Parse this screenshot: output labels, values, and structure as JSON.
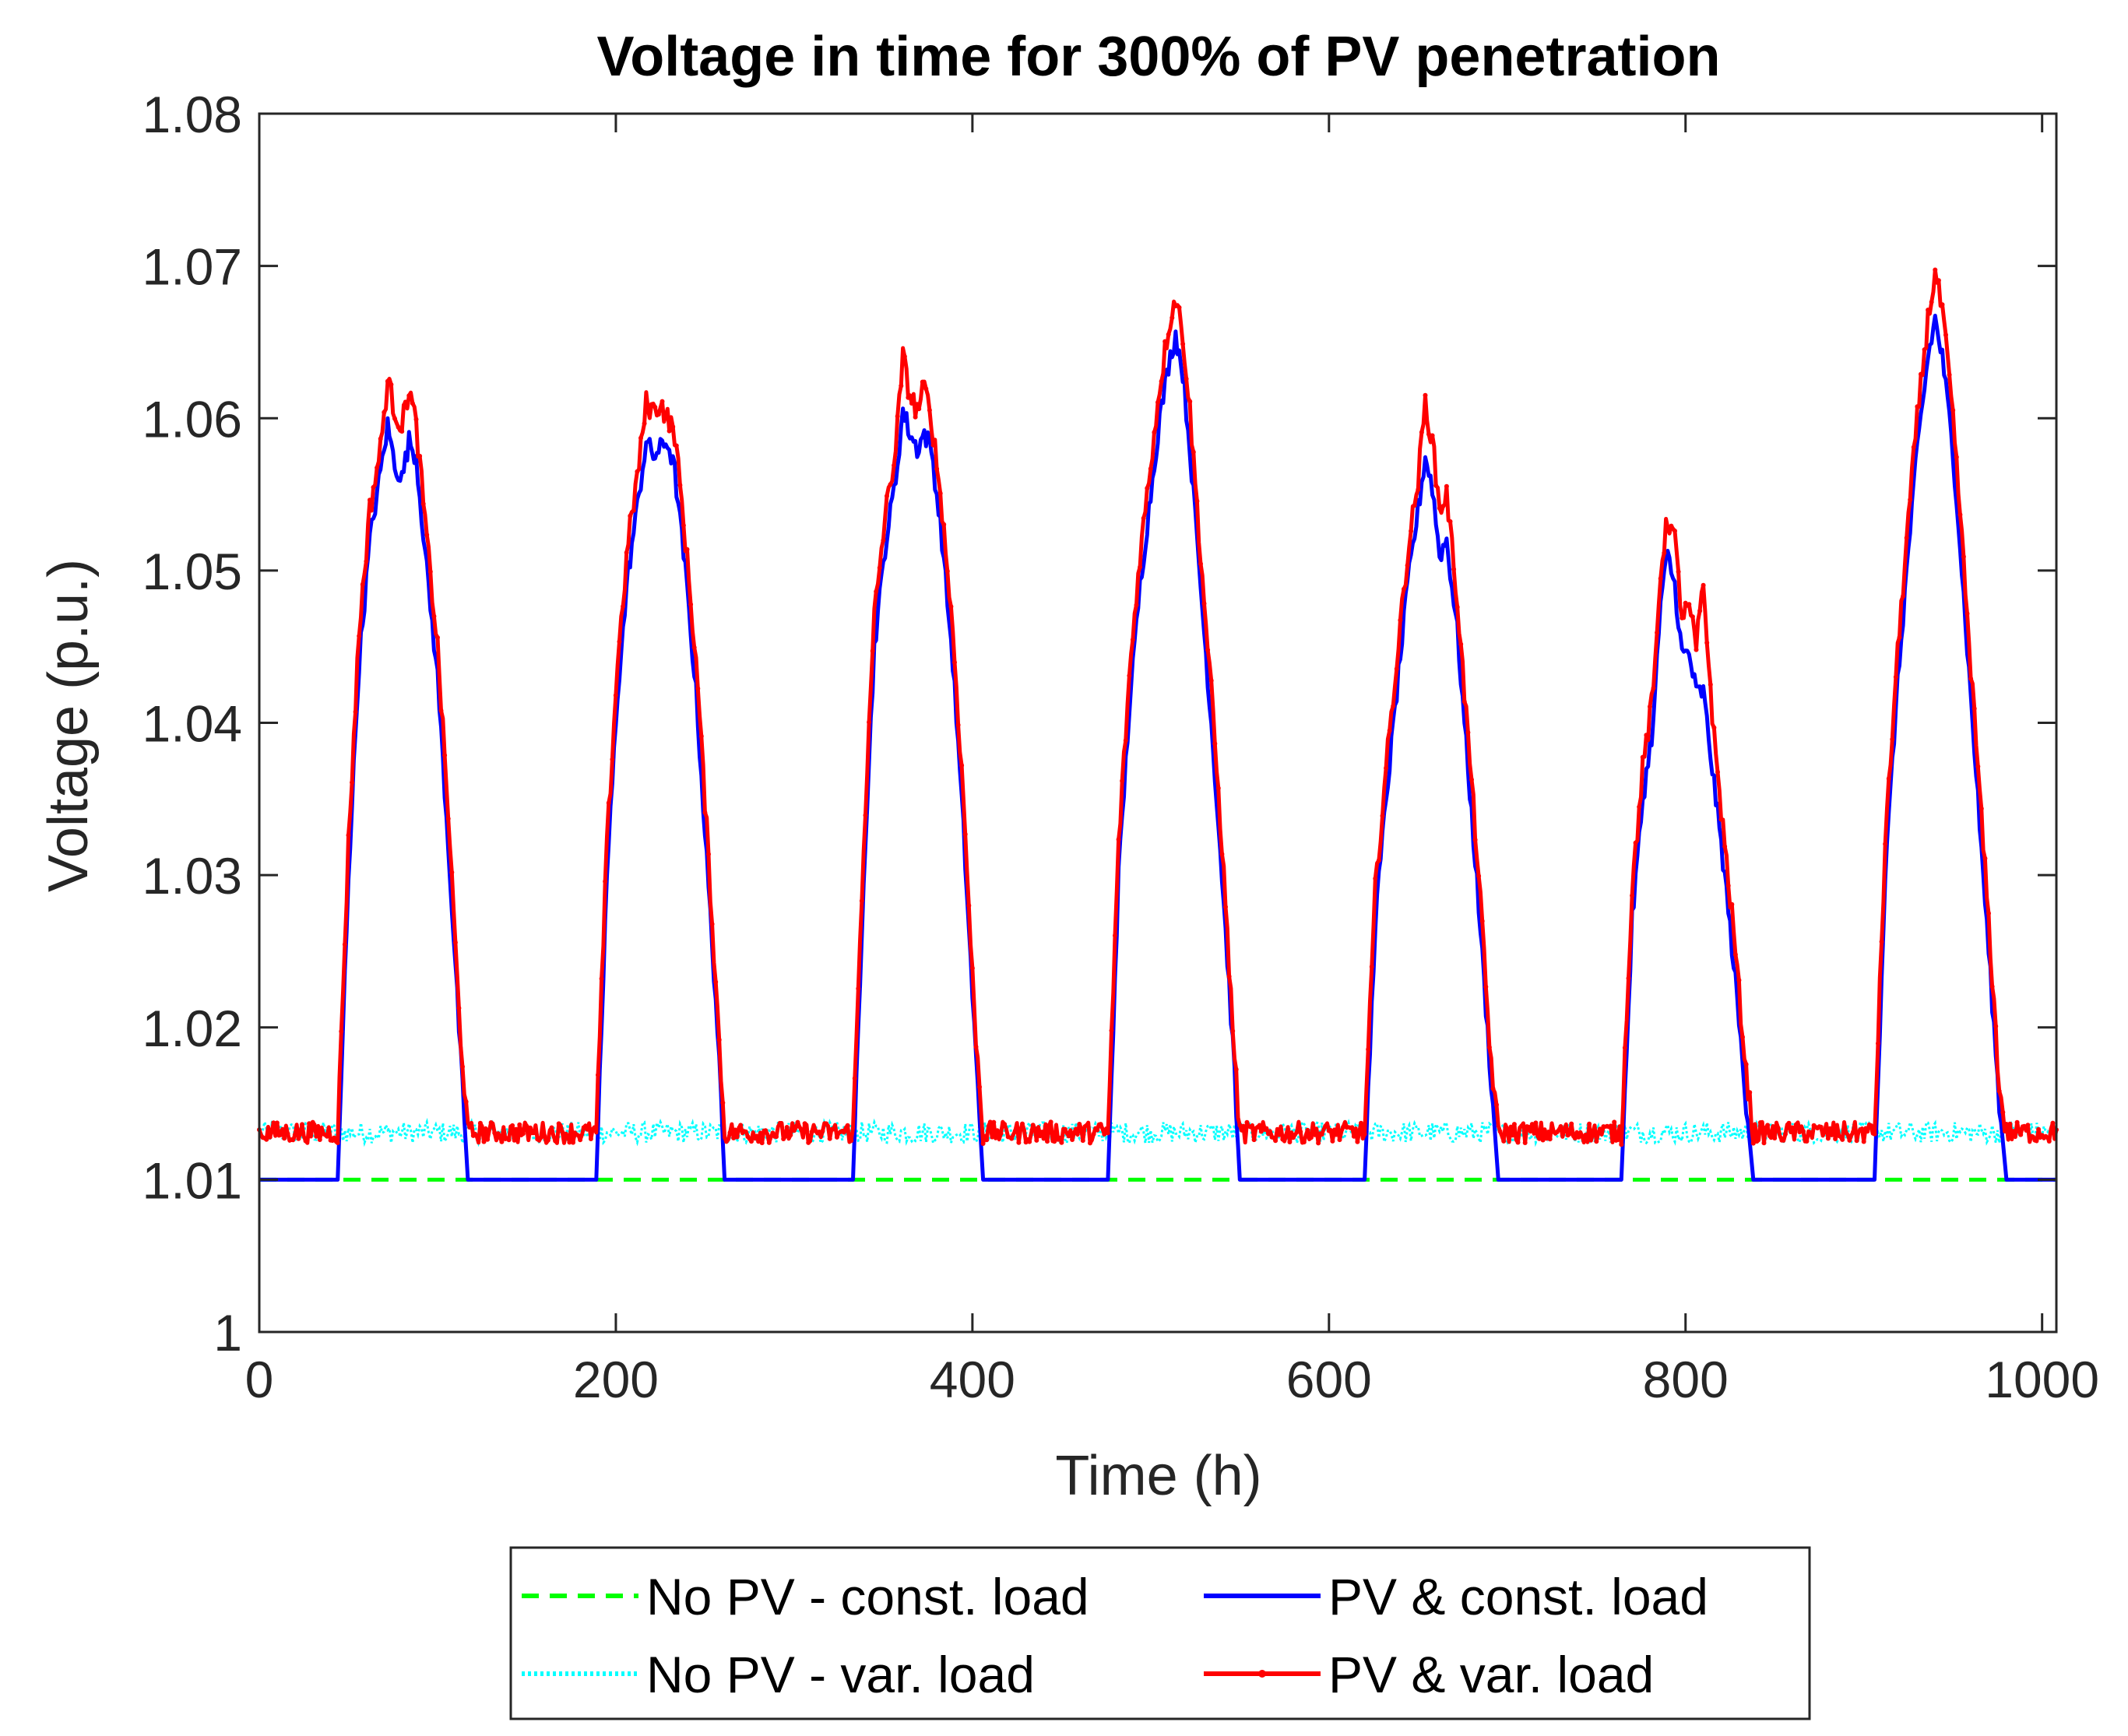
{
  "chart_data": {
    "type": "line",
    "title": "Voltage in time for 300% of PV penetration",
    "xlabel": "Time (h)",
    "ylabel": "Voltage (p.u.)",
    "xlim": [
      0,
      1008
    ],
    "ylim": [
      1.0,
      1.08
    ],
    "xticks": [
      0,
      200,
      400,
      600,
      800,
      1000
    ],
    "xtick_labels": [
      "0",
      "200",
      "400",
      "600",
      "800",
      "1000"
    ],
    "yticks": [
      1.0,
      1.01,
      1.02,
      1.03,
      1.04,
      1.05,
      1.06,
      1.07,
      1.08
    ],
    "ytick_labels": [
      "1",
      "1.01",
      "1.02",
      "1.03",
      "1.04",
      "1.05",
      "1.06",
      "1.07",
      "1.08"
    ],
    "grid": false,
    "legend_location": "bottom-outside",
    "legend": [
      {
        "name": "No PV - const. load",
        "color": "#00ff00",
        "style": "dashed"
      },
      {
        "name": "PV & const. load",
        "color": "#0000ff",
        "style": "solid"
      },
      {
        "name": "No PV - var. load",
        "color": "#00ffff",
        "style": "dotted"
      },
      {
        "name": "PV & var. load",
        "color": "#ff0000",
        "style": "solid-marker"
      }
    ],
    "series": [
      {
        "name": "No PV - const. load",
        "color": "#00ff00",
        "description": "constant 1.01 p.u.",
        "x": [
          0,
          1008
        ],
        "y": [
          1.01,
          1.01
        ]
      },
      {
        "name": "No PV - var. load",
        "color": "#00ffff",
        "description": "noisy around 1.013 p.u., visible where PV curves are not drawn on top",
        "baseline": 1.0131,
        "noise_amplitude": 0.0007
      },
      {
        "name": "PV & const. load",
        "color": "#0000ff",
        "baseline": 1.01,
        "days": [
          {
            "x": [
              44,
              50,
              56,
              62,
              68,
              72,
              76,
              80,
              84,
              88,
              94,
              100,
              106,
              112,
              117
            ],
            "y": [
              1.01,
              1.03,
              1.044,
              1.052,
              1.0565,
              1.0595,
              1.057,
              1.056,
              1.0585,
              1.0575,
              1.05,
              1.043,
              1.032,
              1.02,
              1.01
            ]
          },
          {
            "x": [
              189,
              195,
              201,
              207,
              213,
              217,
              221,
              225,
              229,
              233,
              239,
              245,
              251,
              257,
              261
            ],
            "y": [
              1.01,
              1.03,
              1.042,
              1.05,
              1.055,
              1.0585,
              1.0575,
              1.058,
              1.0585,
              1.0565,
              1.05,
              1.042,
              1.031,
              1.02,
              1.01
            ]
          },
          {
            "x": [
              333,
              339,
              345,
              351,
              357,
              361,
              365,
              369,
              373,
              377,
              383,
              389,
              395,
              401,
              406
            ],
            "y": [
              1.01,
              1.03,
              1.045,
              1.0515,
              1.056,
              1.0605,
              1.059,
              1.058,
              1.059,
              1.058,
              1.052,
              1.044,
              1.033,
              1.02,
              1.01
            ]
          },
          {
            "x": [
              476,
              482,
              488,
              494,
              500,
              505,
              510,
              514,
              518,
              522,
              528,
              534,
              540,
              546,
              550
            ],
            "y": [
              1.01,
              1.03,
              1.041,
              1.049,
              1.055,
              1.06,
              1.0635,
              1.0655,
              1.063,
              1.058,
              1.049,
              1.04,
              1.03,
              1.019,
              1.01
            ]
          },
          {
            "x": [
              620,
              626,
              632,
              638,
              644,
              650,
              654,
              658,
              662,
              666,
              672,
              678,
              684,
              690,
              695
            ],
            "y": [
              1.01,
              1.027,
              1.035,
              1.042,
              1.049,
              1.054,
              1.0575,
              1.0555,
              1.051,
              1.052,
              1.046,
              1.037,
              1.028,
              1.018,
              1.01
            ]
          },
          {
            "x": [
              764,
              770,
              776,
              782,
              786,
              790,
              794,
              798,
              802,
              806,
              810,
              816,
              822,
              828,
              834,
              838
            ],
            "y": [
              1.01,
              1.027,
              1.035,
              1.04,
              1.048,
              1.051,
              1.049,
              1.0445,
              1.0445,
              1.042,
              1.042,
              1.036,
              1.03,
              1.023,
              1.015,
              1.01
            ]
          },
          {
            "x": [
              906,
              912,
              918,
              924,
              930,
              936,
              940,
              944,
              948,
              952,
              958,
              964,
              970,
              976,
              980
            ],
            "y": [
              1.01,
              1.03,
              1.041,
              1.05,
              1.058,
              1.064,
              1.0665,
              1.064,
              1.06,
              1.055,
              1.045,
              1.035,
              1.025,
              1.015,
              1.01
            ]
          }
        ]
      },
      {
        "name": "PV & var. load",
        "color": "#ff0000",
        "baseline": 1.0131,
        "noise_amplitude": 0.0007,
        "days": [
          {
            "x": [
              44,
              50,
              56,
              62,
              68,
              72,
              76,
              80,
              84,
              88,
              94,
              100,
              106,
              112,
              117
            ],
            "y": [
              1.013,
              1.032,
              1.046,
              1.054,
              1.058,
              1.0625,
              1.0605,
              1.0595,
              1.062,
              1.0595,
              1.052,
              1.045,
              1.034,
              1.021,
              1.013
            ]
          },
          {
            "x": [
              189,
              195,
              201,
              207,
              213,
              217,
              221,
              225,
              229,
              233,
              239,
              245,
              251,
              257,
              261
            ],
            "y": [
              1.013,
              1.032,
              1.044,
              1.052,
              1.057,
              1.061,
              1.0605,
              1.061,
              1.06,
              1.059,
              1.052,
              1.044,
              1.033,
              1.021,
              1.013
            ]
          },
          {
            "x": [
              333,
              339,
              345,
              351,
              357,
              361,
              365,
              369,
              373,
              377,
              383,
              389,
              395,
              401,
              406
            ],
            "y": [
              1.013,
              1.032,
              1.047,
              1.0535,
              1.058,
              1.064,
              1.0615,
              1.0605,
              1.062,
              1.06,
              1.054,
              1.046,
              1.035,
              1.021,
              1.013
            ]
          },
          {
            "x": [
              476,
              482,
              488,
              494,
              500,
              505,
              510,
              514,
              518,
              522,
              528,
              534,
              540,
              546,
              550
            ],
            "y": [
              1.013,
              1.032,
              1.043,
              1.051,
              1.057,
              1.062,
              1.066,
              1.068,
              1.0655,
              1.0605,
              1.051,
              1.042,
              1.032,
              1.02,
              1.013
            ]
          },
          {
            "x": [
              620,
              626,
              632,
              638,
              644,
              650,
              654,
              658,
              662,
              666,
              672,
              678,
              684,
              690,
              695
            ],
            "y": [
              1.013,
              1.029,
              1.037,
              1.044,
              1.051,
              1.056,
              1.061,
              1.0585,
              1.054,
              1.055,
              1.048,
              1.039,
              1.03,
              1.019,
              1.013
            ]
          },
          {
            "x": [
              764,
              770,
              776,
              782,
              786,
              790,
              794,
              798,
              802,
              806,
              810,
              816,
              822,
              828,
              834,
              838
            ],
            "y": [
              1.013,
              1.029,
              1.037,
              1.042,
              1.05,
              1.0535,
              1.052,
              1.047,
              1.0475,
              1.045,
              1.049,
              1.039,
              1.032,
              1.025,
              1.017,
              1.013
            ]
          },
          {
            "x": [
              906,
              912,
              918,
              924,
              930,
              936,
              940,
              944,
              948,
              952,
              958,
              964,
              970,
              976,
              980
            ],
            "y": [
              1.013,
              1.032,
              1.043,
              1.052,
              1.06,
              1.0665,
              1.0695,
              1.067,
              1.0625,
              1.057,
              1.047,
              1.037,
              1.027,
              1.016,
              1.013
            ]
          }
        ]
      }
    ]
  }
}
